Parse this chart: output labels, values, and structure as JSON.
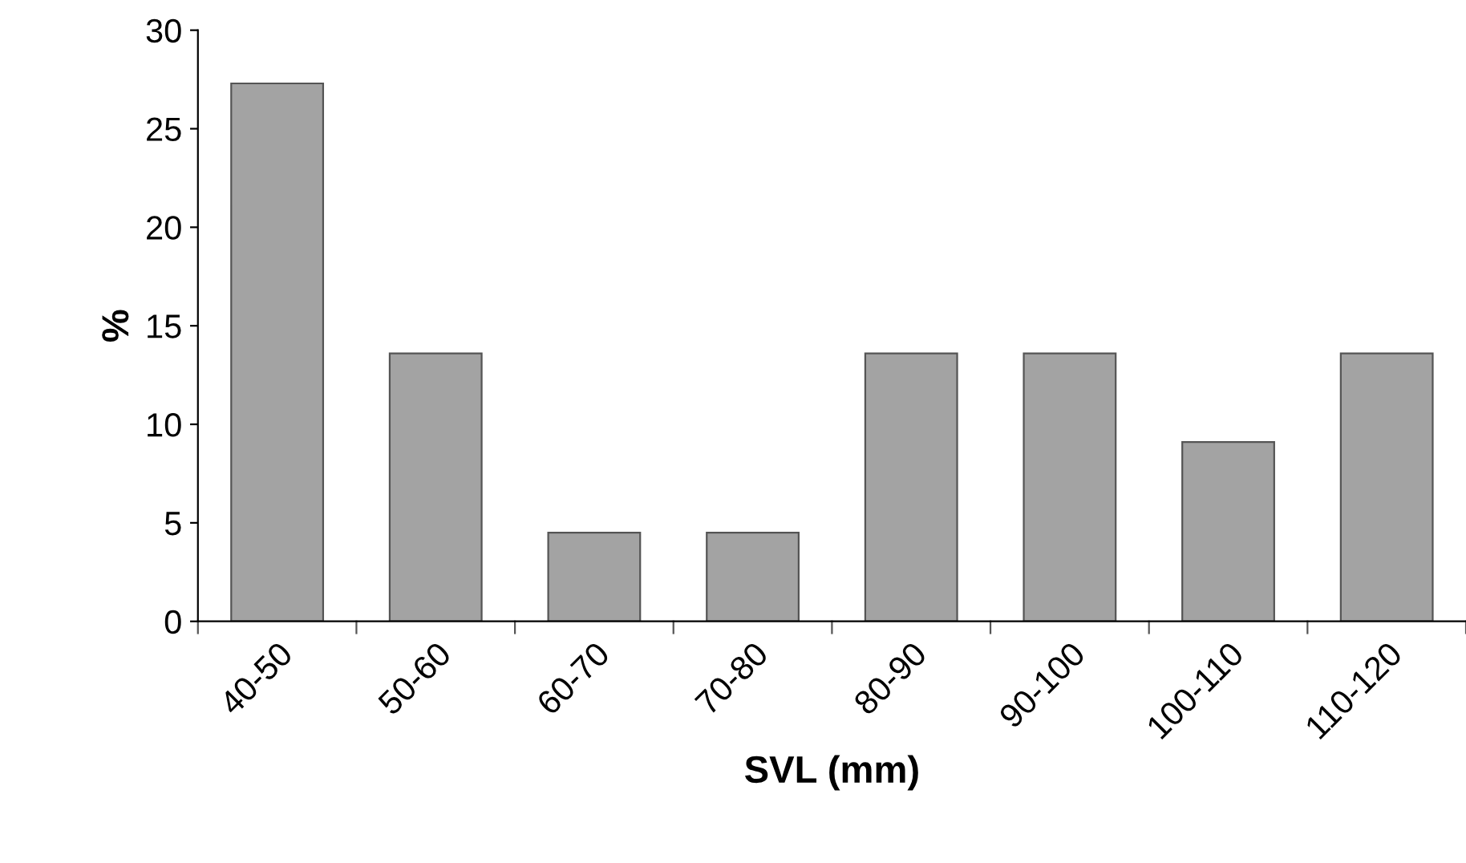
{
  "chart_data": {
    "type": "bar",
    "xlabel": "SVL (mm)",
    "ylabel": "%",
    "categories": [
      "40-50",
      "50-60",
      "60-70",
      "70-80",
      "80-90",
      "90-100",
      "100-110",
      "110-120"
    ],
    "values": [
      27.3,
      13.6,
      4.5,
      4.5,
      13.6,
      13.6,
      9.1,
      13.6
    ],
    "color": "#a3a3a3",
    "ylim": [
      0,
      30
    ],
    "yticks": [
      0,
      5,
      10,
      15,
      20,
      25,
      30
    ],
    "grid": false,
    "legend": false
  }
}
